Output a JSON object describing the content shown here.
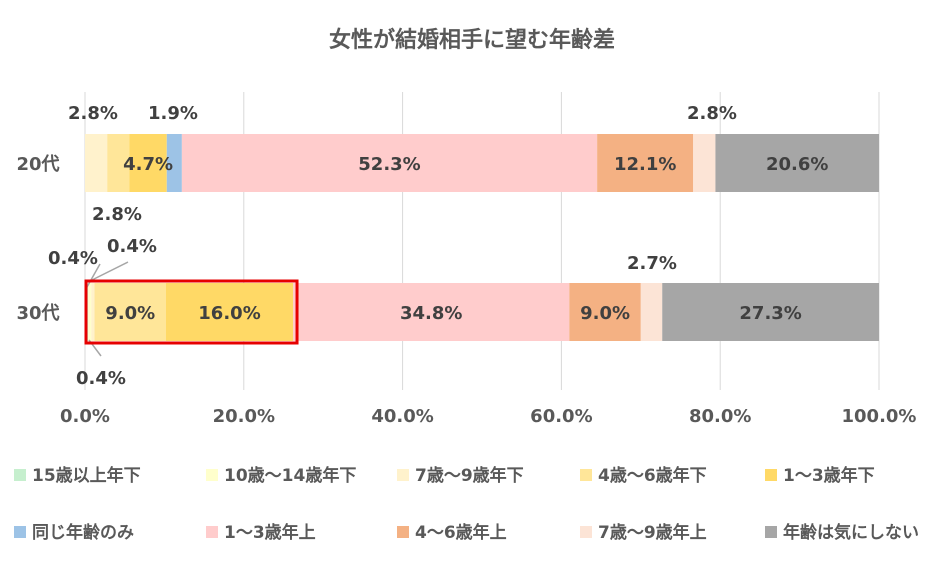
{
  "chart_data": {
    "type": "bar",
    "orientation": "horizontal-stacked",
    "title": "女性が結婚相手に望む年齢差",
    "categories": [
      "20代",
      "30代"
    ],
    "xlim": [
      0,
      100
    ],
    "x_ticks": [
      "0.0%",
      "20.0%",
      "40.0%",
      "60.0%",
      "80.0%",
      "100.0%"
    ],
    "grid": "vertical",
    "legend_position": "bottom",
    "series": [
      {
        "name": "15歳以上年下",
        "color": "#c6efce",
        "values": [
          0.0,
          0.4
        ],
        "labels": [
          "",
          "0.4%"
        ]
      },
      {
        "name": "10歳～14歳年下",
        "color": "#ffffcc",
        "values": [
          0.0,
          0.4
        ],
        "labels": [
          "",
          "0.4%"
        ]
      },
      {
        "name": "7歳～9歳年下",
        "color": "#fff2cc",
        "values": [
          2.8,
          0.4
        ],
        "labels": [
          "2.8%",
          "0.4%"
        ]
      },
      {
        "name": "4歳～6歳年下",
        "color": "#ffe699",
        "values": [
          2.8,
          9.0
        ],
        "labels": [
          "2.8%",
          "9.0%"
        ]
      },
      {
        "name": "1～3歳年下",
        "color": "#ffd966",
        "values": [
          4.7,
          16.0
        ],
        "labels": [
          "4.7%",
          "16.0%"
        ]
      },
      {
        "name": "同じ年齢のみ",
        "color": "#9dc3e6",
        "values": [
          1.9,
          0.0
        ],
        "labels": [
          "1.9%",
          ""
        ]
      },
      {
        "name": "1～3歳年上",
        "color": "#ffcccc",
        "values": [
          52.3,
          34.8
        ],
        "labels": [
          "52.3%",
          "34.8%"
        ]
      },
      {
        "name": "4～6歳年上",
        "color": "#f4b183",
        "values": [
          12.1,
          9.0
        ],
        "labels": [
          "12.1%",
          "9.0%"
        ]
      },
      {
        "name": "7歳～9歳年上",
        "color": "#fce4d6",
        "values": [
          2.8,
          2.7
        ],
        "labels": [
          "2.8%",
          "2.7%"
        ]
      },
      {
        "name": "年齢は気にしない",
        "color": "#a6a6a6",
        "values": [
          20.6,
          27.3
        ],
        "labels": [
          "20.6%",
          "27.3%"
        ]
      }
    ],
    "highlight": {
      "category": "30代",
      "series": [
        "4歳～6歳年下",
        "1～3歳年下"
      ],
      "color": "#e60000"
    }
  }
}
